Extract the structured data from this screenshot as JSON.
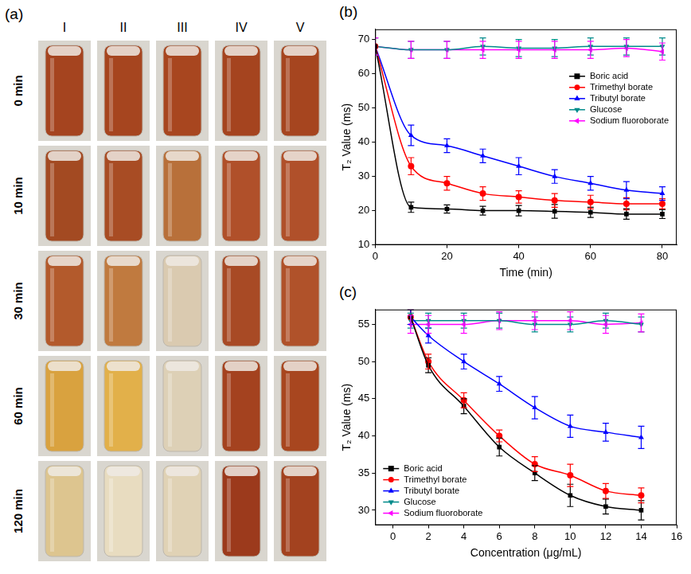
{
  "photo_panel": {
    "label": "(a)",
    "columns": [
      "I",
      "II",
      "III",
      "IV",
      "V"
    ],
    "rows": [
      "0 min",
      "10 min",
      "30 min",
      "60 min",
      "120 min"
    ]
  },
  "chart_data": [
    {
      "type": "line",
      "title": "(b)",
      "x_label": "Time (min)",
      "y_label": "T₂ Value (ms)",
      "x": [
        0,
        10,
        20,
        30,
        40,
        50,
        60,
        70,
        80
      ],
      "xlim": [
        0,
        84
      ],
      "xticks": [
        0,
        20,
        40,
        60,
        80
      ],
      "ylim": [
        10,
        73
      ],
      "yticks": [
        10,
        20,
        30,
        40,
        50,
        60,
        70
      ],
      "grid": false,
      "legend": "upper right",
      "series": [
        {
          "name": "Boric acid",
          "color": "#000000",
          "marker": "square",
          "values": [
            68,
            21,
            20.5,
            20,
            20,
            19.8,
            19.5,
            19,
            19
          ],
          "errors": [
            0,
            1.5,
            1.2,
            1.3,
            1.5,
            2,
            1.5,
            1.5,
            1.3
          ]
        },
        {
          "name": "Trimethyl borate",
          "color": "#ff0000",
          "marker": "circle",
          "values": [
            68,
            33,
            28,
            25,
            24,
            23,
            22.5,
            22,
            22
          ],
          "errors": [
            0,
            2.5,
            2,
            2,
            1.8,
            2,
            2,
            1.8,
            1.5
          ]
        },
        {
          "name": "Tributyl borate",
          "color": "#0000ff",
          "marker": "triangle",
          "values": [
            68,
            42,
            39,
            36,
            33,
            30,
            28,
            26,
            25
          ],
          "errors": [
            0,
            3,
            2,
            2,
            2.5,
            2,
            2,
            2.5,
            2
          ]
        },
        {
          "name": "Glucose",
          "color": "#008b8b",
          "marker": "triangle_down",
          "values": [
            68,
            67,
            67,
            68,
            67.5,
            67.5,
            68,
            68,
            68
          ],
          "errors": [
            2.5,
            2.5,
            2.5,
            2.5,
            2.5,
            2.5,
            2.5,
            2.5,
            2.5
          ]
        },
        {
          "name": "Sodium fluoroborate",
          "color": "#ff00ff",
          "marker": "triangle_left",
          "values": [
            68,
            67,
            67,
            67,
            67,
            67,
            67,
            67.5,
            66.5
          ],
          "errors": [
            2.5,
            2.5,
            2.5,
            2.5,
            2.5,
            2.5,
            2.5,
            2.5,
            2.5
          ]
        }
      ]
    },
    {
      "type": "line",
      "title": "(c)",
      "x_label": "Concentration (μg/mL)",
      "y_label": "T₂ Value (ms)",
      "x": [
        1,
        2,
        4,
        6,
        8,
        10,
        12,
        14
      ],
      "xlim": [
        -1,
        16
      ],
      "xticks": [
        0,
        2,
        4,
        6,
        8,
        10,
        12,
        14,
        16
      ],
      "ylim": [
        28,
        57
      ],
      "yticks": [
        30,
        35,
        40,
        45,
        50,
        55
      ],
      "grid": false,
      "legend": "lower left",
      "series": [
        {
          "name": "Boric acid",
          "color": "#000000",
          "marker": "square",
          "values": [
            56,
            49.5,
            44,
            38.5,
            35,
            32,
            30.5,
            30
          ],
          "errors": [
            1,
            1,
            1,
            1.2,
            1,
            1.5,
            1,
            1.3
          ]
        },
        {
          "name": "Trimethyl borate",
          "color": "#ff0000",
          "marker": "circle",
          "values": [
            56,
            50,
            44.8,
            40,
            36.2,
            34.7,
            32.6,
            32
          ],
          "errors": [
            1,
            1,
            1,
            0.8,
            1,
            1.5,
            1,
            1
          ]
        },
        {
          "name": "Tributyl borate",
          "color": "#0000ff",
          "marker": "triangle",
          "values": [
            56,
            53.5,
            50,
            47,
            43.8,
            41.3,
            40.5,
            39.8
          ],
          "errors": [
            1,
            1,
            1,
            1,
            1.5,
            1.5,
            1.2,
            1.5
          ]
        },
        {
          "name": "Glucose",
          "color": "#008b8b",
          "marker": "triangle_down",
          "values": [
            55.5,
            55.5,
            55.5,
            55.5,
            55,
            55,
            55.5,
            55
          ],
          "errors": [
            1,
            1,
            1,
            1,
            1,
            1,
            1,
            1
          ]
        },
        {
          "name": "Sodium fluoroborate",
          "color": "#ff00ff",
          "marker": "triangle_left",
          "values": [
            55,
            55,
            55,
            55.5,
            55.5,
            55.5,
            55,
            55.2
          ],
          "errors": [
            1.2,
            1.2,
            1.2,
            1.2,
            1.2,
            1.2,
            1.2,
            1.2
          ]
        }
      ]
    }
  ]
}
